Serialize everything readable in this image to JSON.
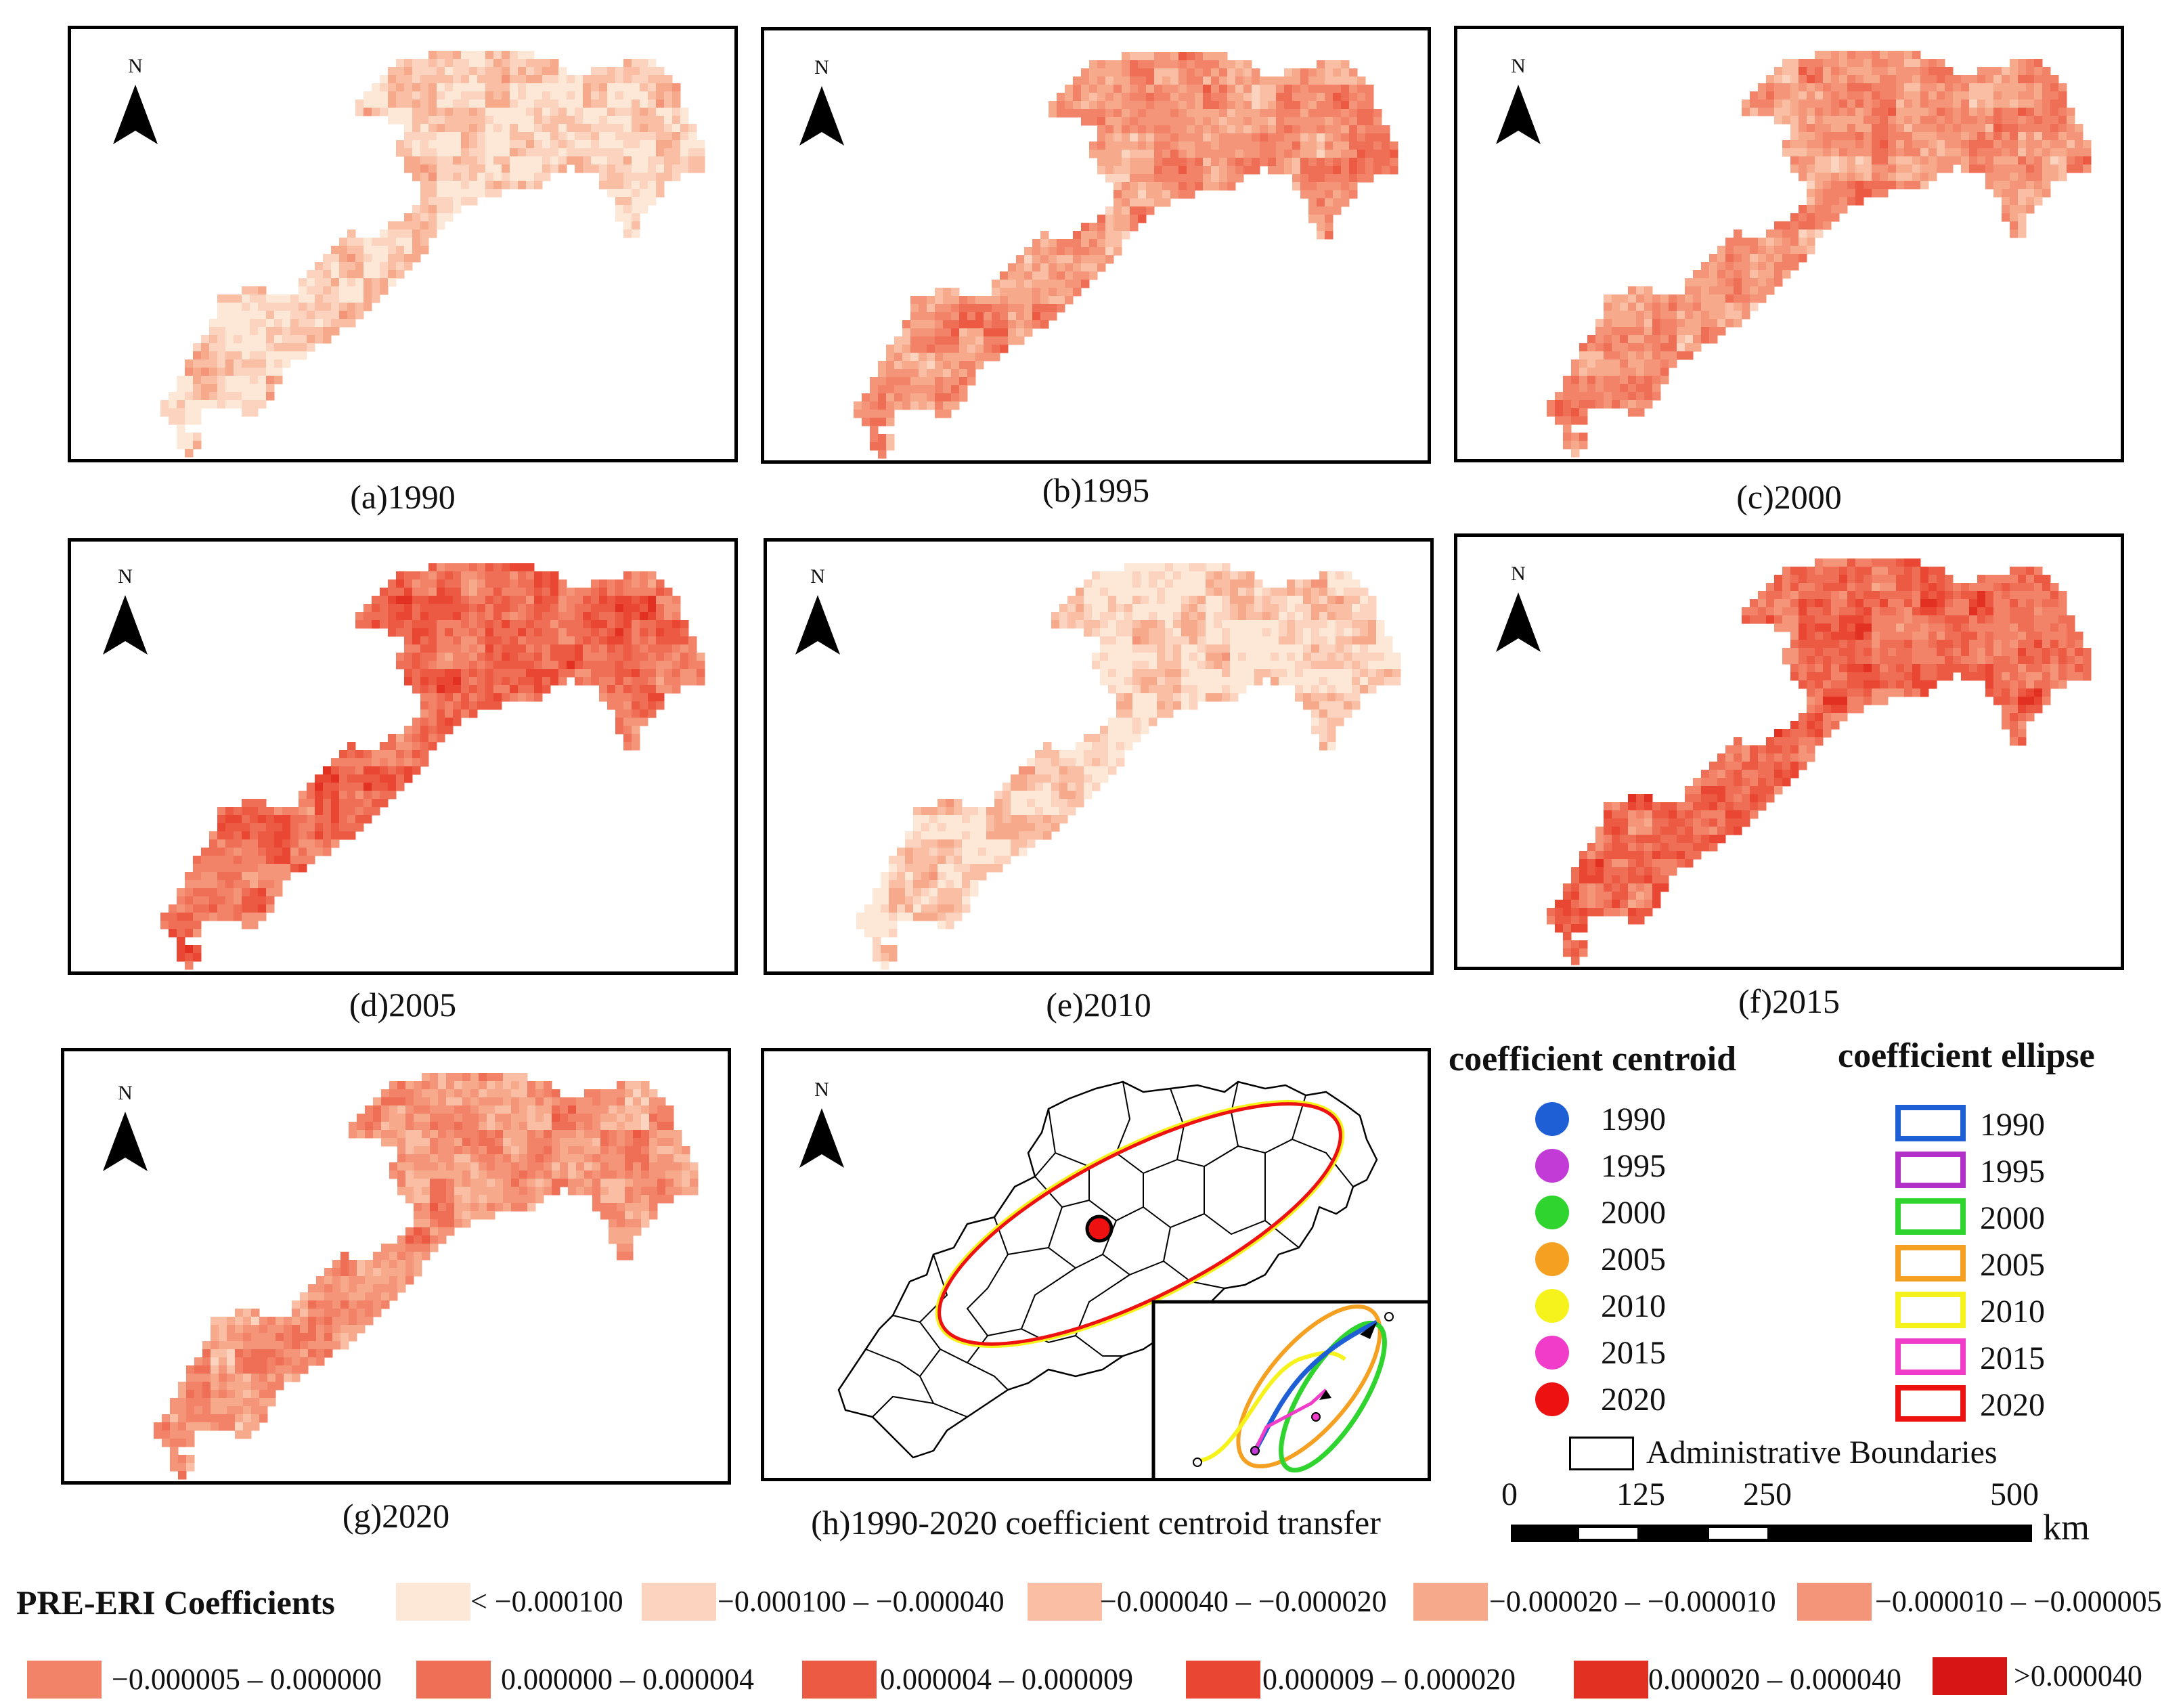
{
  "map_panels": [
    {
      "caption": "(a)1990",
      "north": "N",
      "tone": "light"
    },
    {
      "caption": "(b)1995",
      "north": "N",
      "tone": "mid"
    },
    {
      "caption": "(c)2000",
      "north": "N",
      "tone": "mid"
    },
    {
      "caption": "(d)2005",
      "north": "N",
      "tone": "dark"
    },
    {
      "caption": "(e)2010",
      "north": "N",
      "tone": "light"
    },
    {
      "caption": "(f)2015",
      "north": "N",
      "tone": "dark"
    },
    {
      "caption": "(g)2020",
      "north": "N",
      "tone": "mid"
    }
  ],
  "transfer_panel": {
    "caption": "(h)1990-2020 coefficient centroid transfer",
    "north": "N"
  },
  "centroid_legend": {
    "title": "coefficient  centroid",
    "items": [
      {
        "label": "1990",
        "color": "#1f5fd6"
      },
      {
        "label": "1995",
        "color": "#c23bd6"
      },
      {
        "label": "2000",
        "color": "#2fd42f"
      },
      {
        "label": "2005",
        "color": "#f5a020"
      },
      {
        "label": "2010",
        "color": "#f6f21c"
      },
      {
        "label": "2015",
        "color": "#f03cc8"
      },
      {
        "label": "2020",
        "color": "#ee1111"
      }
    ]
  },
  "ellipse_legend": {
    "title": "coefficient ellipse",
    "items": [
      {
        "label": "1990",
        "color": "#1f5fd6"
      },
      {
        "label": "1995",
        "color": "#b030c8"
      },
      {
        "label": "2000",
        "color": "#2fd42f"
      },
      {
        "label": "2005",
        "color": "#f5a020"
      },
      {
        "label": "2010",
        "color": "#f6f21c"
      },
      {
        "label": "2015",
        "color": "#f03cc8"
      },
      {
        "label": "2020",
        "color": "#ee1111"
      }
    ]
  },
  "boundary_legend": {
    "label": "Administrative Boundaries"
  },
  "scale_bar": {
    "labels": [
      "0",
      "125",
      "250",
      "500"
    ],
    "unit": "km"
  },
  "coefficient_legend": {
    "title": "PRE-ERI Coefficients",
    "classes": [
      {
        "label": "< −0.000100",
        "color": "#fde8d8"
      },
      {
        "label": "−0.000100 – −0.000040",
        "color": "#fbd3bf"
      },
      {
        "label": "−0.000040 – −0.000020",
        "color": "#f9bea4"
      },
      {
        "label": "−0.000020 – −0.000010",
        "color": "#f7a98c"
      },
      {
        "label": "−0.000010 – −0.000005",
        "color": "#f49478"
      },
      {
        "label": "−0.000005 – 0.000000",
        "color": "#f28268"
      },
      {
        "label": "0.000000 – 0.000004",
        "color": "#ef6e56"
      },
      {
        "label": "0.000004 – 0.000009",
        "color": "#ec5a44"
      },
      {
        "label": "0.000009 – 0.000020",
        "color": "#e94733"
      },
      {
        "label": "0.000020 – 0.000040",
        "color": "#e23022"
      },
      {
        "label": ">0.000040",
        "color": "#d81515"
      }
    ]
  }
}
